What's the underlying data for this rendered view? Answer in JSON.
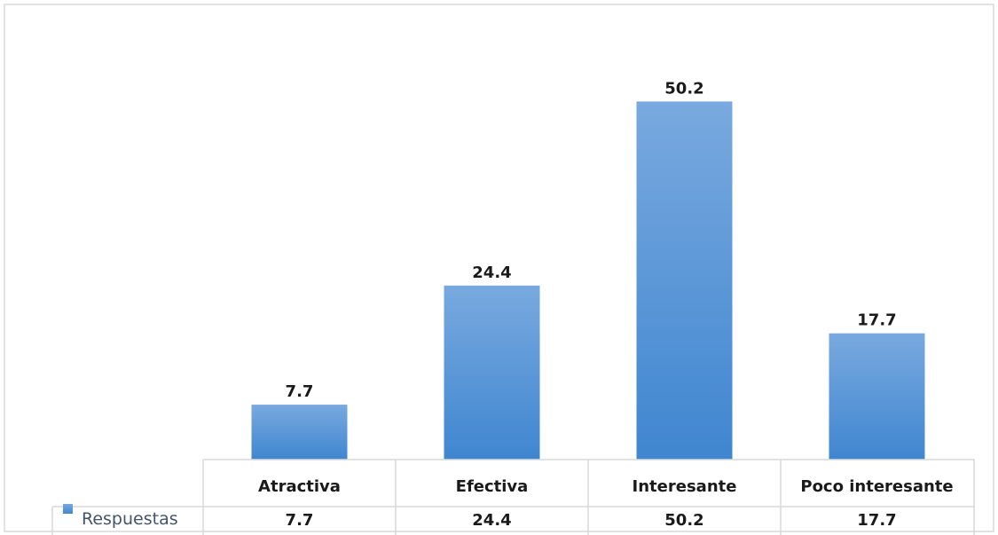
{
  "chart_data": {
    "type": "bar",
    "categories": [
      "Atractiva",
      "Efectiva",
      "Interesante",
      "Poco interesante"
    ],
    "series": [
      {
        "name": "Respuestas",
        "values": [
          7.7,
          24.4,
          50.2,
          17.7
        ],
        "data_labels": [
          "7.7",
          "24.4",
          "50.2",
          "17.7"
        ],
        "table_values": [
          "7.7",
          "24.4",
          "50.2",
          "17.7"
        ]
      }
    ],
    "ylim": [
      0,
      55
    ],
    "grid": false,
    "data_table": true,
    "legend": "bottom-left, in data table",
    "colors": {
      "bar_top": "#79a9df",
      "bar_bottom": "#3f86d0",
      "border": "#d9d9d9"
    }
  }
}
